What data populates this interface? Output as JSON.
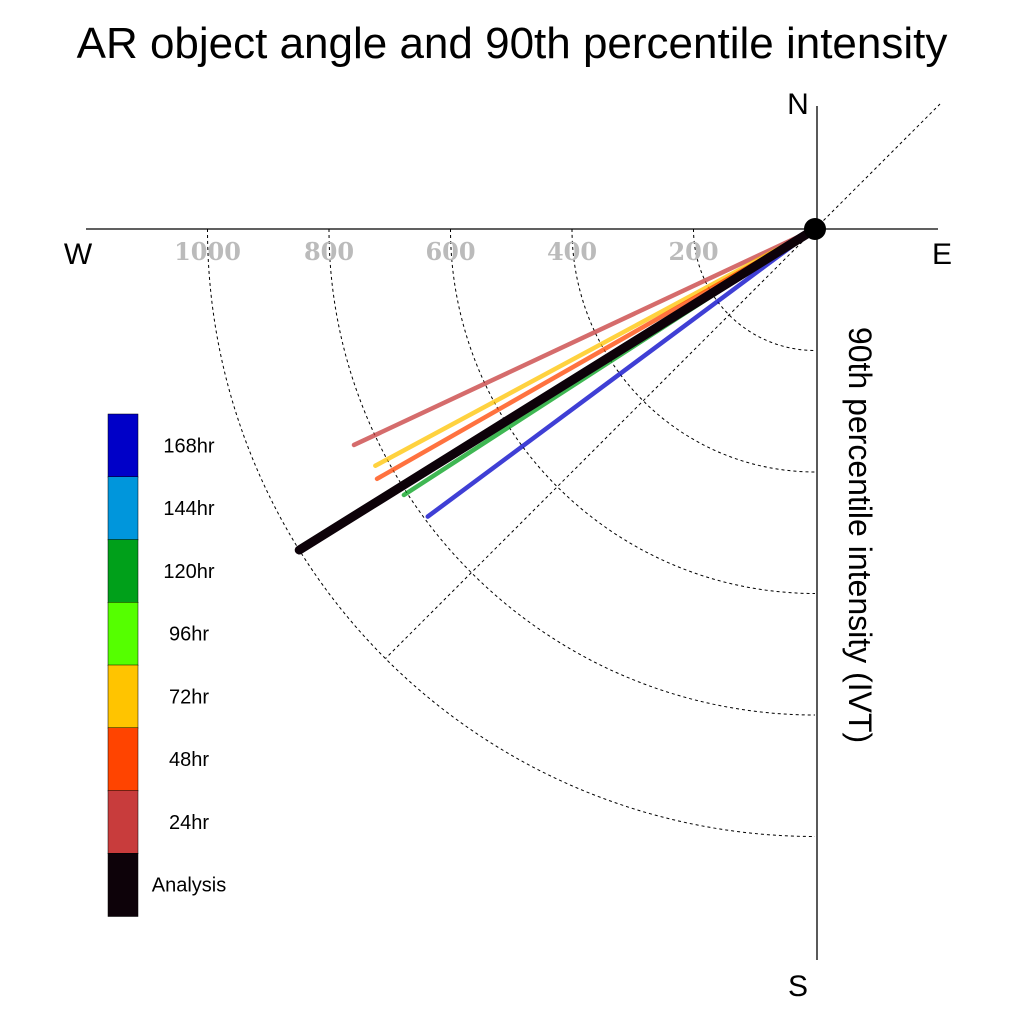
{
  "chart_data": {
    "type": "polar-line",
    "title": "AR object angle and 90th percentile intensity",
    "ylabel": "90th percentile intensity (IVT)",
    "compass": {
      "north": "N",
      "south": "S",
      "east": "E",
      "west": "W"
    },
    "radial_ticks": [
      {
        "value": 200,
        "label": "200"
      },
      {
        "value": 400,
        "label": "400"
      },
      {
        "value": 600,
        "label": "600"
      },
      {
        "value": 800,
        "label": "800"
      },
      {
        "value": 1000,
        "label": "1000"
      }
    ],
    "r_max": 1000,
    "angle_reference_deg": [
      -45,
      45
    ],
    "angle_convention": "degrees clockwise from W toward S",
    "series": [
      {
        "name": "Analysis",
        "color": "#0d0209",
        "angle_deg": 31.9,
        "intensity": 1000
      },
      {
        "name": "24hr",
        "color": "#c83c3c",
        "angle_deg": 25.1,
        "intensity": 838
      },
      {
        "name": "48hr",
        "color": "#ff4400",
        "angle_deg": 29.7,
        "intensity": 830
      },
      {
        "name": "72hr",
        "color": "#ffc400",
        "angle_deg": 28.3,
        "intensity": 822
      },
      {
        "name": "96hr",
        "color": "#55ff00",
        "angle_deg": null,
        "intensity": null
      },
      {
        "name": "120hr",
        "color": "#00a01a",
        "angle_deg": 32.9,
        "intensity": 806
      },
      {
        "name": "144hr",
        "color": "#0096dc",
        "angle_deg": null,
        "intensity": null
      },
      {
        "name": "168hr",
        "color": "#0000c8",
        "angle_deg": 36.6,
        "intensity": 794
      }
    ],
    "legend_order": [
      "168hr",
      "144hr",
      "120hr",
      "96hr",
      "72hr",
      "48hr",
      "24hr",
      "Analysis"
    ],
    "grid": true,
    "legend_position": "left"
  }
}
